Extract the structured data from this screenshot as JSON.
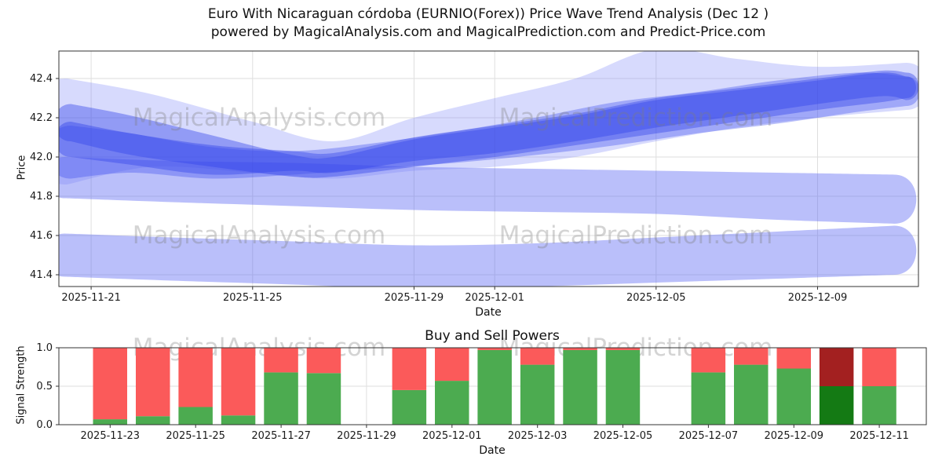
{
  "header": {
    "title_line1": "Euro With Nicaraguan córdoba (EURNIO(Forex)) Price Wave Trend Analysis (Dec 12 )",
    "title_line2": "powered by MagicalAnalysis.com and MagicalPrediction.com and Predict-Price.com"
  },
  "watermarks": {
    "analysis": "MagicalAnalysis.com",
    "prediction": "MagicalPrediction.com"
  },
  "colors": {
    "grid": "#dedede",
    "spine": "#333333",
    "tick_text": "#1a1a1a",
    "buy_green": "#4cab50",
    "sell_red": "#fb5a5a",
    "buy_dark_green": "#147a14",
    "sell_dark_red": "#a32020",
    "band_light": "#5a67f2",
    "band_outer": "#7b86f7",
    "band_dark": "#2b3be8"
  },
  "chart_data": [
    {
      "type": "area",
      "title": "",
      "xlabel": "Date",
      "ylabel": "Price",
      "grid": true,
      "legend": "none",
      "xlim": [
        0.2,
        21.5
      ],
      "ylim": [
        41.34,
        42.54
      ],
      "x_ticks": [
        {
          "day": 1,
          "label": "2025-11-21"
        },
        {
          "day": 5,
          "label": "2025-11-25"
        },
        {
          "day": 9,
          "label": "2025-11-29"
        },
        {
          "day": 11,
          "label": "2025-12-01"
        },
        {
          "day": 15,
          "label": "2025-12-05"
        },
        {
          "day": 19,
          "label": "2025-12-09"
        }
      ],
      "y_ticks": [
        "41.4",
        "41.6",
        "41.8",
        "42.0",
        "42.2",
        "42.4"
      ],
      "y_tick_values": [
        41.4,
        41.6,
        41.8,
        42.0,
        42.2,
        42.4
      ],
      "bands": [
        {
          "name": "lower-envelope",
          "color": "#5a67f2",
          "opacity": 0.42,
          "points": [
            [
              0.35,
              41.39,
              41.61
            ],
            [
              3,
              41.37,
              41.59
            ],
            [
              6,
              41.35,
              41.57
            ],
            [
              9,
              41.33,
              41.55
            ],
            [
              12,
              41.34,
              41.56
            ],
            [
              15,
              41.36,
              41.59
            ],
            [
              18,
              41.38,
              41.62
            ],
            [
              20.9,
              41.4,
              41.65
            ]
          ]
        },
        {
          "name": "mid-envelope",
          "color": "#5a67f2",
          "opacity": 0.42,
          "points": [
            [
              0.35,
              41.79,
              42.0
            ],
            [
              3,
              41.77,
              41.98
            ],
            [
              6,
              41.75,
              41.97
            ],
            [
              9,
              41.73,
              41.95
            ],
            [
              12,
              41.72,
              41.94
            ],
            [
              15,
              41.71,
              41.93
            ],
            [
              18,
              41.68,
              41.92
            ],
            [
              20.9,
              41.66,
              41.91
            ]
          ]
        },
        {
          "name": "outer-envelope",
          "color": "#7b86f7",
          "opacity": 0.3,
          "points": [
            [
              0.4,
              41.86,
              42.4
            ],
            [
              2.5,
              41.95,
              42.32
            ],
            [
              5,
              41.92,
              42.18
            ],
            [
              7,
              41.89,
              42.08
            ],
            [
              9,
              41.93,
              42.2
            ],
            [
              11,
              41.95,
              42.3
            ],
            [
              13,
              42.0,
              42.4
            ],
            [
              15,
              42.08,
              42.55
            ],
            [
              17,
              42.15,
              42.5
            ],
            [
              19,
              42.2,
              42.46
            ],
            [
              21.2,
              42.24,
              42.48
            ]
          ]
        },
        {
          "name": "trend-a",
          "color": "#2b3be8",
          "opacity": 0.4,
          "points": [
            [
              0.5,
              42.0,
              42.18
            ],
            [
              2,
              41.96,
              42.12
            ],
            [
              4,
              41.91,
              42.06
            ],
            [
              6,
              41.93,
              42.03
            ],
            [
              7,
              41.92,
              42.02
            ],
            [
              9,
              41.98,
              42.1
            ],
            [
              11,
              42.02,
              42.16
            ],
            [
              13,
              42.08,
              42.22
            ],
            [
              15,
              42.15,
              42.3
            ],
            [
              17,
              42.21,
              42.35
            ],
            [
              19,
              42.27,
              42.4
            ],
            [
              20.6,
              42.31,
              42.44
            ],
            [
              21.2,
              42.29,
              42.43
            ]
          ]
        },
        {
          "name": "trend-b",
          "color": "#2b3be8",
          "opacity": 0.4,
          "points": [
            [
              0.5,
              42.08,
              42.27
            ],
            [
              2,
              42.01,
              42.21
            ],
            [
              4,
              41.95,
              42.11
            ],
            [
              6,
              41.9,
              42.01
            ],
            [
              7,
              41.9,
              42.0
            ],
            [
              9,
              41.95,
              42.09
            ],
            [
              11,
              42.0,
              42.15
            ],
            [
              13,
              42.06,
              42.21
            ],
            [
              15,
              42.12,
              42.29
            ],
            [
              17,
              42.18,
              42.34
            ],
            [
              19,
              42.24,
              42.39
            ],
            [
              20.6,
              42.28,
              42.43
            ],
            [
              21.2,
              42.3,
              42.41
            ]
          ]
        },
        {
          "name": "trend-c",
          "color": "#3a4aee",
          "opacity": 0.35,
          "points": [
            [
              0.5,
              41.89,
              42.16
            ],
            [
              2,
              41.92,
              42.12
            ],
            [
              4,
              41.89,
              42.05
            ],
            [
              6,
              41.91,
              42.03
            ],
            [
              8,
              41.94,
              42.07
            ],
            [
              10,
              41.97,
              42.13
            ],
            [
              12,
              42.01,
              42.2
            ],
            [
              14,
              42.06,
              42.28
            ],
            [
              16,
              42.12,
              42.33
            ],
            [
              18,
              42.17,
              42.39
            ],
            [
              20,
              42.23,
              42.43
            ],
            [
              21.2,
              42.26,
              42.41
            ]
          ]
        }
      ]
    },
    {
      "type": "bar",
      "title": "Buy and Sell Powers",
      "xlabel": "Date",
      "ylabel": "Signal Strength",
      "grid": true,
      "legend": "none",
      "xlim": [
        1.8,
        22.1
      ],
      "ylim": [
        0,
        1.0
      ],
      "bar_width_days": 0.8,
      "x_ticks": [
        {
          "day": 3,
          "label": "2025-11-23"
        },
        {
          "day": 5,
          "label": "2025-11-25"
        },
        {
          "day": 7,
          "label": "2025-11-27"
        },
        {
          "day": 9,
          "label": "2025-11-29"
        },
        {
          "day": 11,
          "label": "2025-12-01"
        },
        {
          "day": 13,
          "label": "2025-12-03"
        },
        {
          "day": 15,
          "label": "2025-12-05"
        },
        {
          "day": 17,
          "label": "2025-12-07"
        },
        {
          "day": 19,
          "label": "2025-12-09"
        },
        {
          "day": 21,
          "label": "2025-12-11"
        }
      ],
      "y_ticks": [
        "0.0",
        "0.5",
        "1.0"
      ],
      "y_tick_values": [
        0,
        0.5,
        1.0
      ],
      "series_names": [
        "Buy",
        "Sell"
      ],
      "bars": [
        {
          "date": "2025-11-23",
          "day": 3,
          "buy": 0.07,
          "sell": 0.93
        },
        {
          "date": "2025-11-24",
          "day": 4,
          "buy": 0.11,
          "sell": 0.89
        },
        {
          "date": "2025-11-25",
          "day": 5,
          "buy": 0.23,
          "sell": 0.77
        },
        {
          "date": "2025-11-26",
          "day": 6,
          "buy": 0.12,
          "sell": 0.88
        },
        {
          "date": "2025-11-27",
          "day": 7,
          "buy": 0.68,
          "sell": 0.32
        },
        {
          "date": "2025-11-28",
          "day": 8,
          "buy": 0.67,
          "sell": 0.33
        },
        {
          "date": "2025-11-30",
          "day": 10,
          "buy": 0.45,
          "sell": 0.55
        },
        {
          "date": "2025-12-01",
          "day": 11,
          "buy": 0.57,
          "sell": 0.43
        },
        {
          "date": "2025-12-02",
          "day": 12,
          "buy": 0.97,
          "sell": 0.03
        },
        {
          "date": "2025-12-03",
          "day": 13,
          "buy": 0.78,
          "sell": 0.22
        },
        {
          "date": "2025-12-04",
          "day": 14,
          "buy": 0.97,
          "sell": 0.03
        },
        {
          "date": "2025-12-05",
          "day": 15,
          "buy": 0.97,
          "sell": 0.03
        },
        {
          "date": "2025-12-07",
          "day": 17,
          "buy": 0.68,
          "sell": 0.32
        },
        {
          "date": "2025-12-08",
          "day": 18,
          "buy": 0.78,
          "sell": 0.22
        },
        {
          "date": "2025-12-09",
          "day": 19,
          "buy": 0.73,
          "sell": 0.27
        },
        {
          "date": "2025-12-10",
          "day": 20,
          "buy": 0.5,
          "sell": 0.5,
          "dark": true
        },
        {
          "date": "2025-12-11",
          "day": 21,
          "buy": 0.5,
          "sell": 0.5
        }
      ]
    }
  ]
}
